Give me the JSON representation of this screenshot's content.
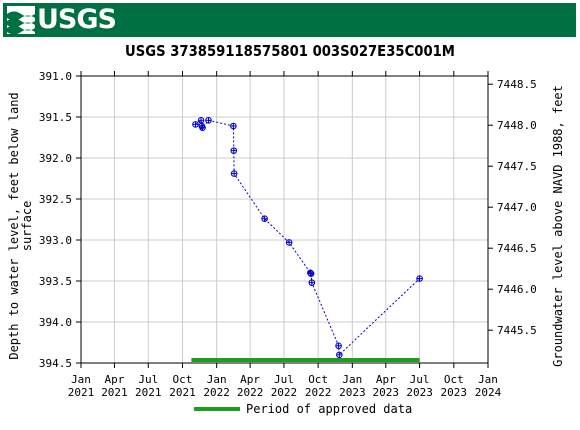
{
  "header": {
    "agency": "USGS",
    "logo_icon": "usgs-wave-logo",
    "banner_color": "#006f41"
  },
  "chart_data": {
    "type": "scatter",
    "title": "USGS 373859118575801 003S027E35C001M",
    "ylabel_left_lines": [
      "Depth to water level, feet below land",
      "surface"
    ],
    "ylabel_right": "Groundwater level above NAVD 1988, feet",
    "y_left_range": [
      391.0,
      394.5
    ],
    "y_left_inverted": true,
    "y_left_ticks": [
      "391.0",
      "391.5",
      "392.0",
      "392.5",
      "393.0",
      "393.5",
      "394.0",
      "394.5"
    ],
    "y_right_ticks": [
      {
        "value": 7448.5,
        "label": "7448.5"
      },
      {
        "value": 7448.0,
        "label": "7448.0"
      },
      {
        "value": 7447.5,
        "label": "7447.5"
      },
      {
        "value": 7447.0,
        "label": "7447.0"
      },
      {
        "value": 7446.5,
        "label": "7446.5"
      },
      {
        "value": 7446.0,
        "label": "7446.0"
      },
      {
        "value": 7445.5,
        "label": "7445.5"
      }
    ],
    "datum_offset": 7839.6,
    "x_range": [
      "2021-01-01",
      "2024-01-01"
    ],
    "x_ticks": [
      {
        "date": "2021-01-01",
        "line1": "Jan",
        "line2": "2021"
      },
      {
        "date": "2021-04-01",
        "line1": "Apr",
        "line2": "2021"
      },
      {
        "date": "2021-07-01",
        "line1": "Jul",
        "line2": "2021"
      },
      {
        "date": "2021-10-01",
        "line1": "Oct",
        "line2": "2021"
      },
      {
        "date": "2022-01-01",
        "line1": "Jan",
        "line2": "2022"
      },
      {
        "date": "2022-04-01",
        "line1": "Apr",
        "line2": "2022"
      },
      {
        "date": "2022-07-01",
        "line1": "Jul",
        "line2": "2022"
      },
      {
        "date": "2022-10-01",
        "line1": "Oct",
        "line2": "2022"
      },
      {
        "date": "2023-01-01",
        "line1": "Jan",
        "line2": "2023"
      },
      {
        "date": "2023-04-01",
        "line1": "Apr",
        "line2": "2023"
      },
      {
        "date": "2023-07-01",
        "line1": "Jul",
        "line2": "2023"
      },
      {
        "date": "2023-10-01",
        "line1": "Oct",
        "line2": "2023"
      },
      {
        "date": "2024-01-01",
        "line1": "Jan",
        "line2": "2024"
      }
    ],
    "grid": true,
    "series": [
      {
        "points": [
          {
            "x": "2021-11-05",
            "y": 391.59
          },
          {
            "x": "2021-11-20",
            "y": 391.54
          },
          {
            "x": "2021-11-22",
            "y": 391.61
          },
          {
            "x": "2021-11-24",
            "y": 391.63
          },
          {
            "x": "2021-12-10",
            "y": 391.54
          },
          {
            "x": "2022-02-15",
            "y": 391.61
          },
          {
            "x": "2022-02-16",
            "y": 391.91
          },
          {
            "x": "2022-02-17",
            "y": 392.19
          },
          {
            "x": "2022-05-10",
            "y": 392.74
          },
          {
            "x": "2022-07-15",
            "y": 393.03
          },
          {
            "x": "2022-09-10",
            "y": 393.4
          },
          {
            "x": "2022-09-12",
            "y": 393.41
          },
          {
            "x": "2022-09-14",
            "y": 393.52
          },
          {
            "x": "2022-11-25",
            "y": 394.29
          },
          {
            "x": "2022-11-27",
            "y": 394.4
          },
          {
            "x": "2023-07-01",
            "y": 393.47
          }
        ],
        "line_color": "#0000cc",
        "marker_color": "#0000cc"
      }
    ],
    "approved_period": {
      "start": "2021-10-25",
      "end": "2023-07-01",
      "color": "#1e9e1e"
    },
    "legend": {
      "label": "Period of approved data",
      "position": "bottom-center"
    }
  }
}
